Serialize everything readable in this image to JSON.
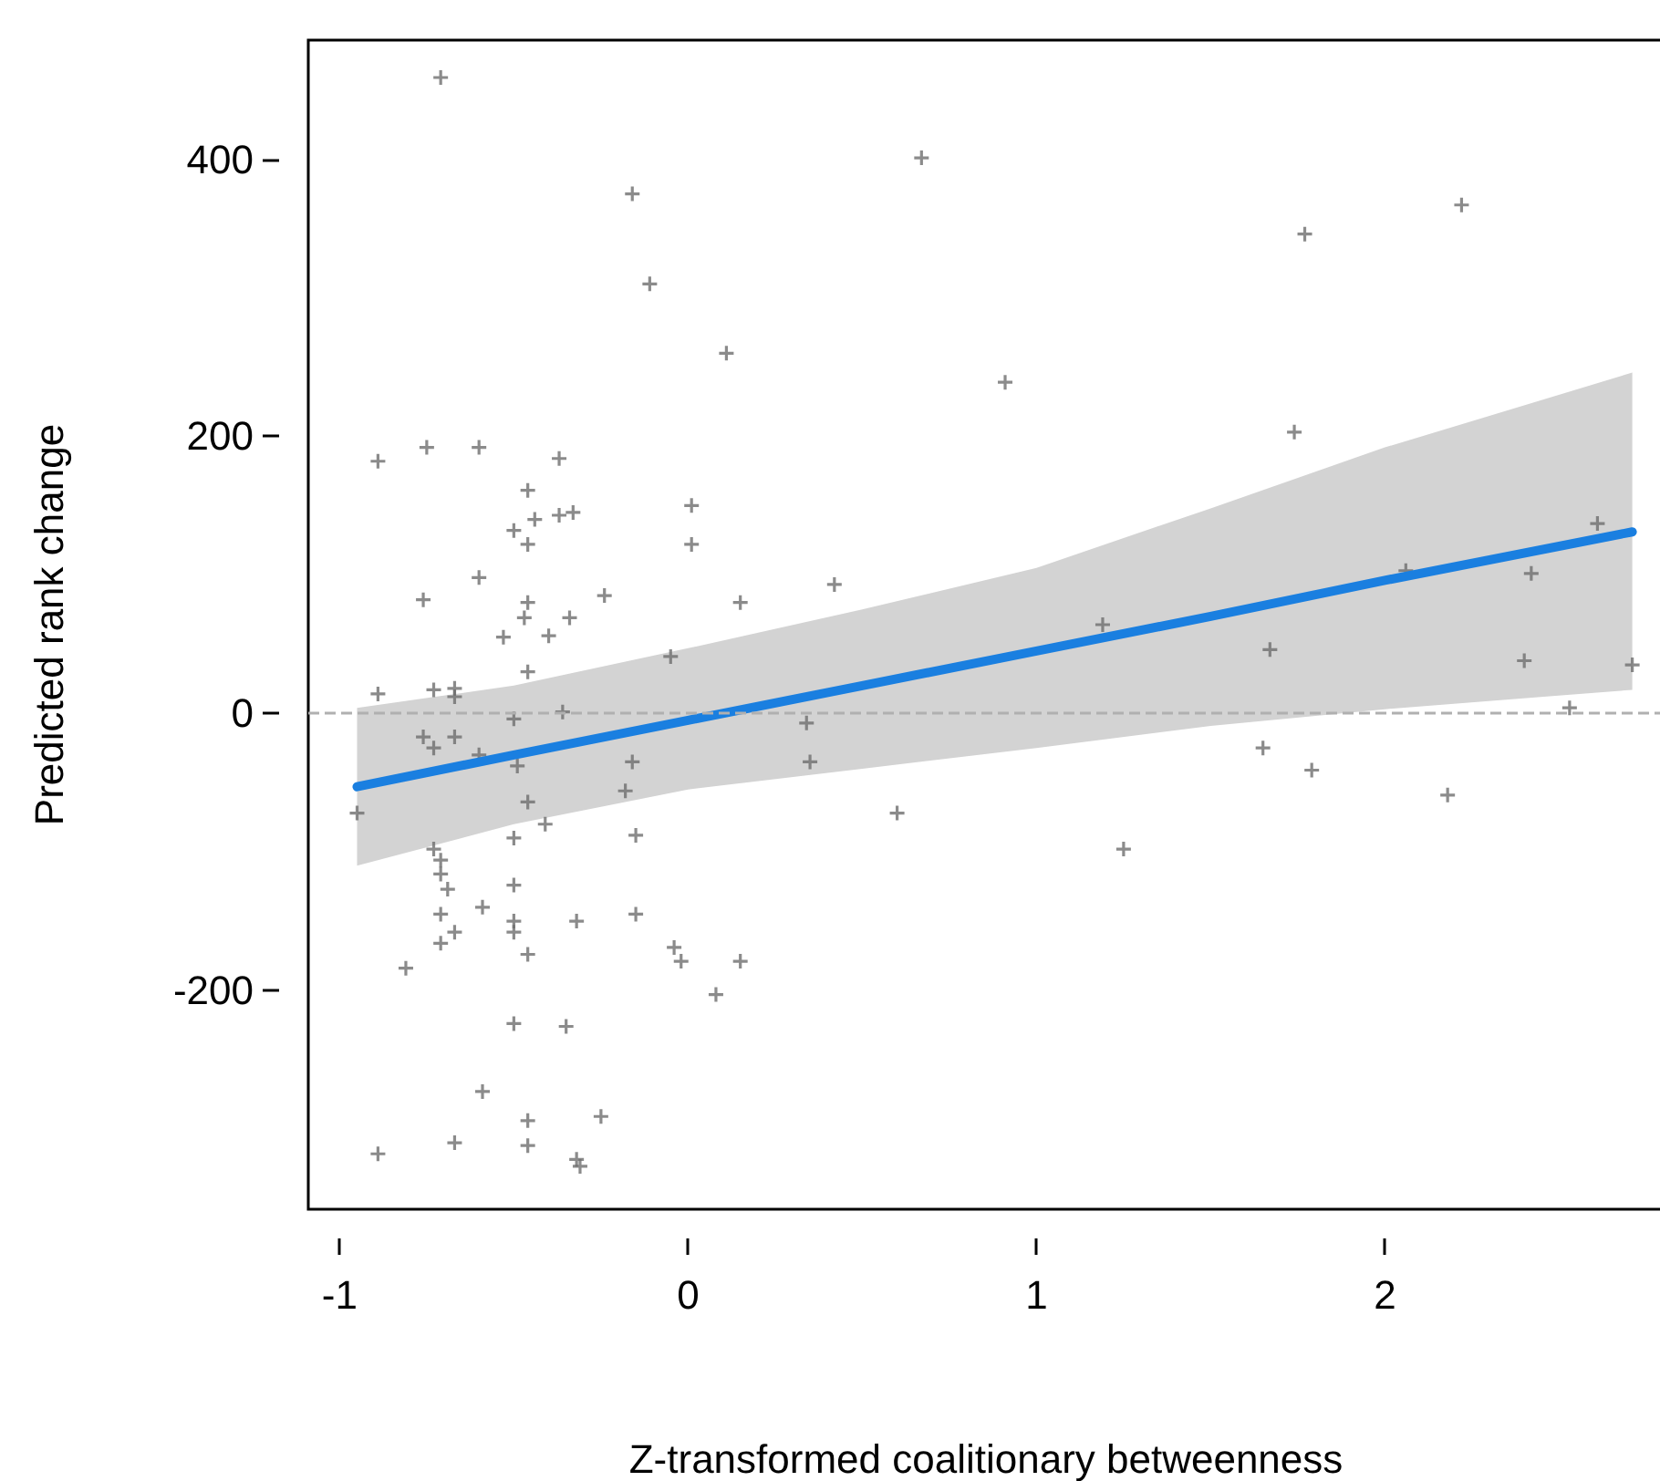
{
  "chart_data": {
    "type": "scatter",
    "xlabel": "Z-transformed coalitionary betweenness",
    "ylabel": "Predicted rank change",
    "xlim": [
      -1.09,
      2.8
    ],
    "ylim": [
      -358,
      486
    ],
    "xticks": [
      -1,
      0,
      1,
      2
    ],
    "yticks": [
      -200,
      0,
      200,
      400
    ],
    "grid": false,
    "ref_lines": [
      {
        "axis": "y",
        "value": 0,
        "color": "#b0b0b0",
        "line_style": "dashed"
      }
    ],
    "series": [
      {
        "color": "#6e6e6e",
        "marker": "cross",
        "x": [
          -0.71,
          -0.16,
          -0.11,
          0.11,
          -0.89,
          -0.75,
          -0.6,
          -0.37,
          -0.46,
          0.01,
          -0.44,
          -0.5,
          -0.37,
          -0.33,
          -0.46,
          0.01,
          -0.6,
          -0.76,
          -0.24,
          0.15,
          -0.46,
          -0.47,
          -0.34,
          -0.53,
          -0.4,
          -0.46,
          -0.05,
          -0.89,
          -0.73,
          -0.67,
          -0.67,
          -0.5,
          -0.36,
          -0.76,
          -0.73,
          -0.67,
          -0.6,
          -0.49,
          -0.16,
          -0.18,
          -0.95,
          -0.46,
          -0.41,
          -0.5,
          -0.15,
          -0.73,
          -0.71,
          -0.71,
          -0.69,
          -0.5,
          -0.71,
          -0.59,
          -0.5,
          -0.5,
          -0.67,
          -0.32,
          -0.15,
          -0.71,
          -0.46,
          -0.04,
          -0.02,
          0.15,
          -0.81,
          0.08,
          -0.5,
          -0.35,
          -0.59,
          -0.25,
          -0.46,
          -0.67,
          -0.46,
          -0.89,
          -0.32,
          -0.31,
          0.67,
          1.77,
          2.22,
          0.91,
          1.74,
          0.42,
          2.61,
          2.42,
          2.06,
          1.19,
          1.67,
          2.4,
          2.71,
          2.53,
          0.34,
          0.35,
          1.65,
          1.79,
          2.18,
          0.6,
          1.25
        ],
        "values": [
          459,
          375,
          310,
          260,
          182,
          192,
          192,
          184,
          161,
          150,
          140,
          132,
          143,
          145,
          122,
          122,
          98,
          82,
          85,
          80,
          80,
          69,
          69,
          55,
          56,
          30,
          41,
          14,
          17,
          18,
          12,
          -4,
          1,
          -17,
          -25,
          -17,
          -30,
          -38,
          -35,
          -56,
          -72,
          -64,
          -80,
          -90,
          -88,
          -98,
          -106,
          -116,
          -127,
          -124,
          -145,
          -140,
          -150,
          -158,
          -158,
          -150,
          -145,
          -166,
          -174,
          -169,
          -179,
          -179,
          -184,
          -203,
          -224,
          -226,
          -273,
          -291,
          -294,
          -310,
          -312,
          -318,
          -322,
          -327,
          401,
          346,
          367,
          239,
          203,
          93,
          137,
          101,
          103,
          64,
          46,
          38,
          35,
          4,
          -7,
          -35,
          -25,
          -41,
          -59,
          -72,
          -98
        ]
      },
      {
        "type": "line",
        "color": "#1a7fe0",
        "marker": "none",
        "line_style": "solid",
        "x": [
          -0.95,
          -0.5,
          0,
          0.5,
          1,
          1.5,
          2,
          2.71
        ],
        "values": [
          -53,
          -30,
          -5,
          20,
          45,
          70,
          96,
          131
        ],
        "lower": [
          -110,
          -80,
          -55,
          -40,
          -25,
          -9,
          3,
          17
        ],
        "upper": [
          4,
          20,
          47,
          75,
          105,
          148,
          192,
          246
        ]
      }
    ]
  }
}
